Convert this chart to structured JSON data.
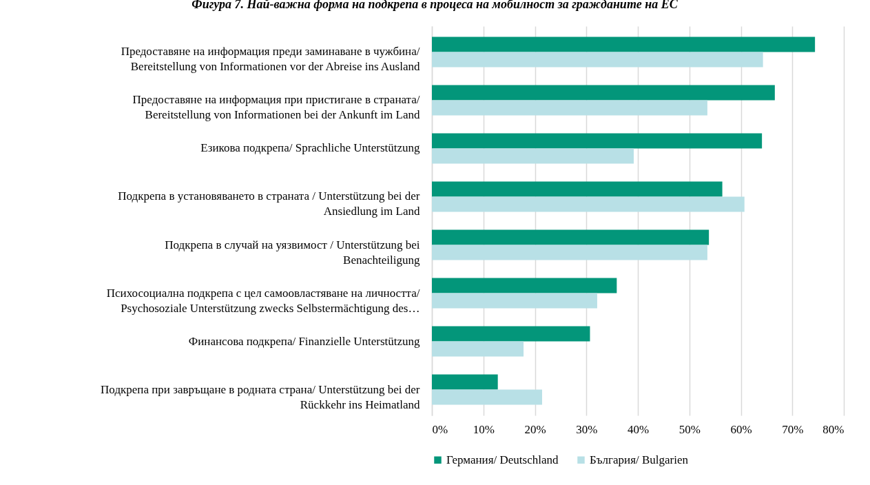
{
  "chart_data": {
    "type": "bar",
    "orientation": "horizontal",
    "title": "Фигура 7. Най-важна форма на подкрепа в процеса на мобилност за гражданите на ЕС",
    "categories": [
      "Предоставяне на информация преди заминаване в чужбина/\nBereitstellung von Informationen vor der Abreise ins Ausland",
      "Предоставяне на информация при пристигане в страната/\nBereitstellung von Informationen bei der Ankunft im Land",
      "Езикова подкрепа/ Sprachliche Unterstützung",
      "Подкрепа в установяването в страната / Unterstützung bei der\nAnsiedlung im Land",
      "Подкрепа в случай на уязвимост / Unterstützung bei\nBenachteiligung",
      "Психосоциална подкрепа с цел самоовластяване на личността/\nPsychosoziale Unterstützung zwecks Selbstermächtigung des…",
      "Финансова подкрепа/ Finanzielle Unterstützung",
      "Подкрепа при завръщане в родната страна/ Unterstützung bei der\nRückkehr ins Heimatland"
    ],
    "series": [
      {
        "name": "Германия/ Deutschland",
        "color": "#03967a",
        "values": [
          74.4,
          66.6,
          64.1,
          56.4,
          53.8,
          35.9,
          30.7,
          12.8
        ]
      },
      {
        "name": "България/ Bulgarien",
        "color": "#b8e0e6",
        "values": [
          64.3,
          53.5,
          39.2,
          60.7,
          53.5,
          32.1,
          17.8,
          21.4
        ]
      }
    ],
    "xlim": [
      0,
      80
    ],
    "xticks": [
      {
        "value": 0,
        "label": "0%"
      },
      {
        "value": 10,
        "label": "10%"
      },
      {
        "value": 20,
        "label": "20%"
      },
      {
        "value": 30,
        "label": "30%"
      },
      {
        "value": 40,
        "label": "40%"
      },
      {
        "value": 50,
        "label": "50%"
      },
      {
        "value": 60,
        "label": "60%"
      },
      {
        "value": 70,
        "label": "70%"
      },
      {
        "value": 80,
        "label": "80%"
      }
    ],
    "grid": "x",
    "legend": "bottom"
  }
}
